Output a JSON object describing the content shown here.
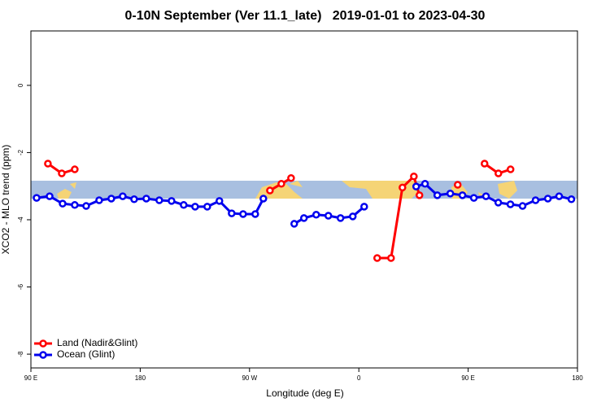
{
  "chart_data": {
    "type": "line",
    "title": "0-10N September (Ver 11.1_late)   2019-01-01 to 2023-04-30",
    "x_label": "Longitude (deg E)",
    "y_label": "XCO2 - MLO trend (ppm)",
    "xlim": [
      90,
      540
    ],
    "xticks": [
      {
        "value": 90,
        "label": "90 E"
      },
      180,
      {
        "value": 270,
        "label": "90 W"
      },
      {
        "value": 360,
        "label": "0"
      },
      {
        "value": 450,
        "label": "90 E"
      },
      {
        "value": 540,
        "label": "180"
      }
    ],
    "ylim": [
      -8.41,
      1.62
    ],
    "yticks": [
      0,
      -2,
      -4,
      -6,
      -8
    ],
    "legend": "bottom-left",
    "series": [
      {
        "name": "Land (Nadir&Glint)",
        "color": "#ff0000",
        "x": [
          104,
          115.4,
          126.1,
          null,
          286.8,
          296.2,
          304.2,
          null,
          375.1,
          386.5,
          395.9,
          405.3,
          409.9,
          null,
          441.4,
          null,
          463.5,
          474.9,
          484.9
        ],
        "values": [
          -2.33,
          -2.62,
          -2.5,
          null,
          -3.13,
          -2.93,
          -2.76,
          null,
          -5.14,
          -5.14,
          -3.04,
          -2.71,
          -3.27,
          null,
          -2.96,
          null,
          -2.33,
          -2.62,
          -2.5
        ]
      },
      {
        "name": "Ocean (Glint)",
        "color": "#0000ee",
        "x": [
          94.7,
          105.4,
          116.1,
          126.1,
          135.5,
          146.2,
          156.2,
          165.6,
          175.0,
          185.0,
          195.7,
          205.8,
          215.8,
          225.2,
          235.2,
          245.2,
          255.3,
          264.7,
          274.7,
          281.4,
          null,
          306.8,
          314.8,
          324.9,
          334.9,
          344.9,
          355.0,
          364.4,
          null,
          407.2,
          414.5,
          424.6,
          435.3,
          445.3,
          454.7,
          464.7,
          474.8,
          484.8,
          494.8,
          505.5,
          515.6,
          524.9,
          535.0
        ],
        "values": [
          -3.35,
          -3.3,
          -3.52,
          -3.56,
          -3.59,
          -3.42,
          -3.37,
          -3.3,
          -3.39,
          -3.37,
          -3.42,
          -3.44,
          -3.56,
          -3.61,
          -3.61,
          -3.44,
          -3.81,
          -3.83,
          -3.83,
          -3.37,
          null,
          -4.12,
          -3.95,
          -3.85,
          -3.88,
          -3.95,
          -3.9,
          -3.61,
          null,
          -3.01,
          -2.93,
          -3.27,
          -3.22,
          -3.27,
          -3.35,
          -3.3,
          -3.49,
          -3.54,
          -3.59,
          -3.42,
          -3.37,
          -3.3,
          -3.39
        ]
      }
    ]
  }
}
